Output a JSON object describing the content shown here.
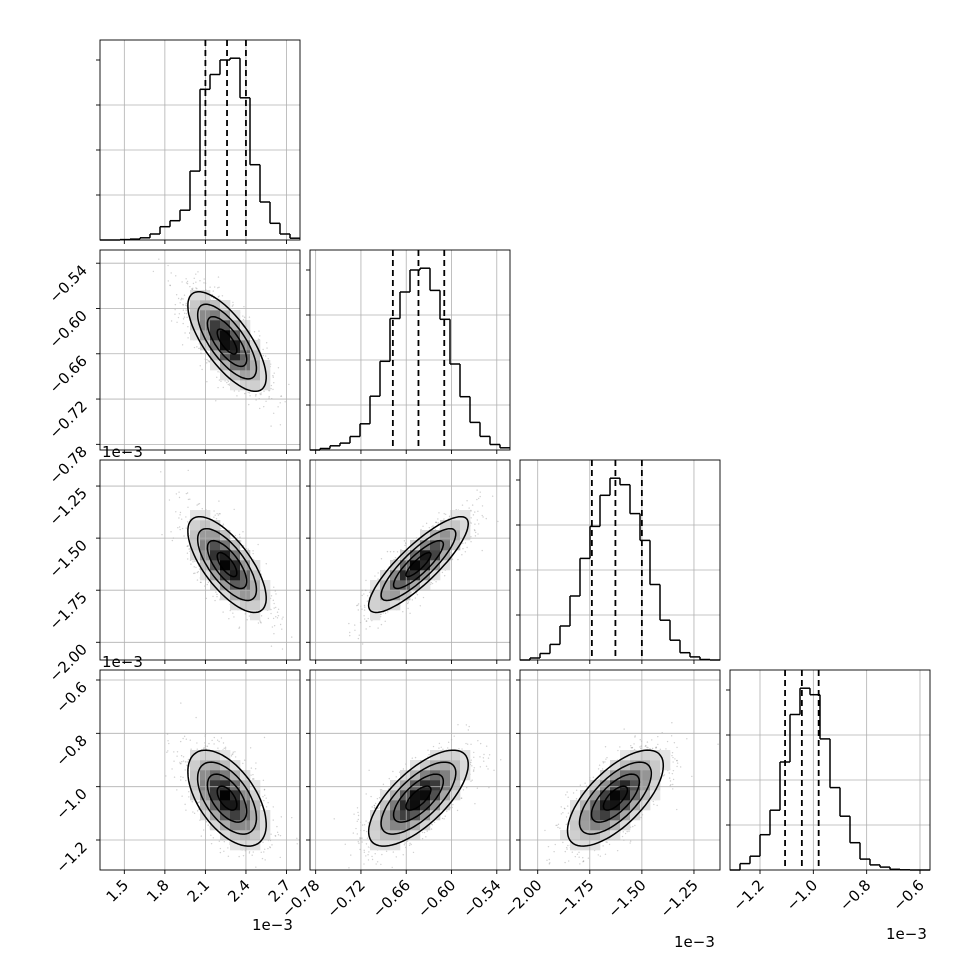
{
  "chart_data": {
    "type": "corner",
    "n_params": 4,
    "grid": true,
    "colors": {
      "ink": "#000000",
      "grid": "#b0b0b0",
      "density": "#333333"
    },
    "parameters": [
      {
        "index": 0,
        "ticks": [
          "1.5",
          "1.8",
          "2.1",
          "2.4",
          "2.7"
        ],
        "tick_values": [
          1.5,
          1.8,
          2.1,
          2.4,
          2.7
        ],
        "range": [
          1.32,
          2.8
        ],
        "scale_label": "1e−3",
        "quantiles": [
          2.1,
          2.26,
          2.4
        ]
      },
      {
        "index": 1,
        "ticks": [
          "−0.78",
          "−0.72",
          "−0.66",
          "−0.60",
          "−0.54"
        ],
        "tick_values": [
          -0.78,
          -0.72,
          -0.66,
          -0.6,
          -0.54
        ],
        "range": [
          -0.7875,
          -0.5225
        ],
        "scale_label": "1e−3",
        "quantiles": [
          -0.6777,
          -0.6438,
          -0.6096
        ]
      },
      {
        "index": 2,
        "ticks": [
          "−2.00",
          "−1.75",
          "−1.50",
          "−1.25"
        ],
        "tick_values": [
          -2.0,
          -1.75,
          -1.5,
          -1.25
        ],
        "range": [
          -2.085,
          -1.125
        ],
        "scale_label": "1e−3",
        "quantiles": [
          -1.74,
          -1.627,
          -1.5
        ]
      },
      {
        "index": 3,
        "ticks": [
          "−1.2",
          "−1.0",
          "−0.8",
          "−0.6"
        ],
        "tick_values": [
          -1.2,
          -1.0,
          -0.8,
          -0.6
        ],
        "range": [
          -1.3125,
          -0.5625
        ],
        "scale_label": "1e−3",
        "quantiles": [
          -1.106,
          -1.043,
          -0.98
        ]
      }
    ],
    "marginals": [
      {
        "param": 0,
        "bin_edges": [
          1.32,
          1.394,
          1.468,
          1.542,
          1.616,
          1.69,
          1.764,
          1.838,
          1.912,
          1.986,
          2.06,
          2.134,
          2.208,
          2.282,
          2.356,
          2.43,
          2.504,
          2.578,
          2.652,
          2.726,
          2.8
        ],
        "counts": [
          0,
          0,
          0.2,
          0.5,
          1.2,
          3.3,
          7.3,
          10.6,
          16.4,
          37.9,
          82.9,
          91.0,
          99.0,
          100.0,
          78.2,
          41.4,
          20.9,
          9.2,
          3.3,
          1.0
        ]
      },
      {
        "param": 1,
        "bin_edges": [
          -0.7875,
          -0.77425,
          -0.761,
          -0.74775,
          -0.7345,
          -0.72125,
          -0.708,
          -0.69475,
          -0.6815,
          -0.66825,
          -0.655,
          -0.64175,
          -0.6285,
          -0.61525,
          -0.602,
          -0.58875,
          -0.5755,
          -0.56225,
          -0.549,
          -0.53575,
          -0.5225
        ],
        "counts": [
          0,
          0.8,
          2.3,
          3.8,
          7.4,
          14.4,
          29.6,
          48.8,
          72.3,
          86.9,
          99.0,
          100.0,
          87.8,
          71.9,
          47.3,
          29.3,
          15.2,
          7.5,
          3.0,
          1.2
        ]
      },
      {
        "param": 2,
        "bin_edges": [
          -2.085,
          -2.037,
          -1.989,
          -1.941,
          -1.893,
          -1.845,
          -1.797,
          -1.749,
          -1.701,
          -1.653,
          -1.605,
          -1.557,
          -1.509,
          -1.461,
          -1.413,
          -1.365,
          -1.317,
          -1.269,
          -1.221,
          -1.173,
          -1.125
        ],
        "counts": [
          0,
          1.1,
          3.6,
          8.6,
          18.7,
          35.2,
          55.9,
          73.5,
          90.6,
          100.0,
          96.4,
          80.5,
          65.8,
          41.5,
          21.9,
          10.9,
          4.0,
          1.7,
          0.3,
          0
        ]
      },
      {
        "param": 3,
        "bin_edges": [
          -1.3125,
          -1.275,
          -1.2375,
          -1.2,
          -1.1625,
          -1.125,
          -1.0875,
          -1.05,
          -1.0125,
          -0.975,
          -0.9375,
          -0.9,
          -0.8625,
          -0.825,
          -0.7875,
          -0.75,
          -0.7125,
          -0.675,
          -0.6375,
          -0.6,
          -0.5625
        ],
        "counts": [
          0,
          3.5,
          7.6,
          19.4,
          32.9,
          59.4,
          85.5,
          100.0,
          96.4,
          72.1,
          45.3,
          29.6,
          15.0,
          6.0,
          2.8,
          1.6,
          0.4,
          0.1,
          0,
          0
        ]
      }
    ],
    "joint": [
      {
        "x": 0,
        "y": 1,
        "mean": [
          2.26,
          -0.6438
        ],
        "sd": [
          0.145,
          0.033
        ],
        "rho": -0.72
      },
      {
        "x": 0,
        "y": 2,
        "mean": [
          2.26,
          -1.627
        ],
        "sd": [
          0.145,
          0.115
        ],
        "rho": -0.7
      },
      {
        "x": 1,
        "y": 2,
        "mean": [
          -0.6438,
          -1.627
        ],
        "sd": [
          0.033,
          0.115
        ],
        "rho": 0.85
      },
      {
        "x": 0,
        "y": 3,
        "mean": [
          2.26,
          -1.043
        ],
        "sd": [
          0.145,
          0.09
        ],
        "rho": -0.55
      },
      {
        "x": 1,
        "y": 3,
        "mean": [
          -0.6438,
          -1.043
        ],
        "sd": [
          0.033,
          0.09
        ],
        "rho": 0.7
      },
      {
        "x": 2,
        "y": 3,
        "mean": [
          -1.627,
          -1.043
        ],
        "sd": [
          0.115,
          0.09
        ],
        "rho": 0.68
      }
    ],
    "contour_levels_sigma": [
      0.5,
      1.0,
      1.5,
      2.0
    ]
  }
}
